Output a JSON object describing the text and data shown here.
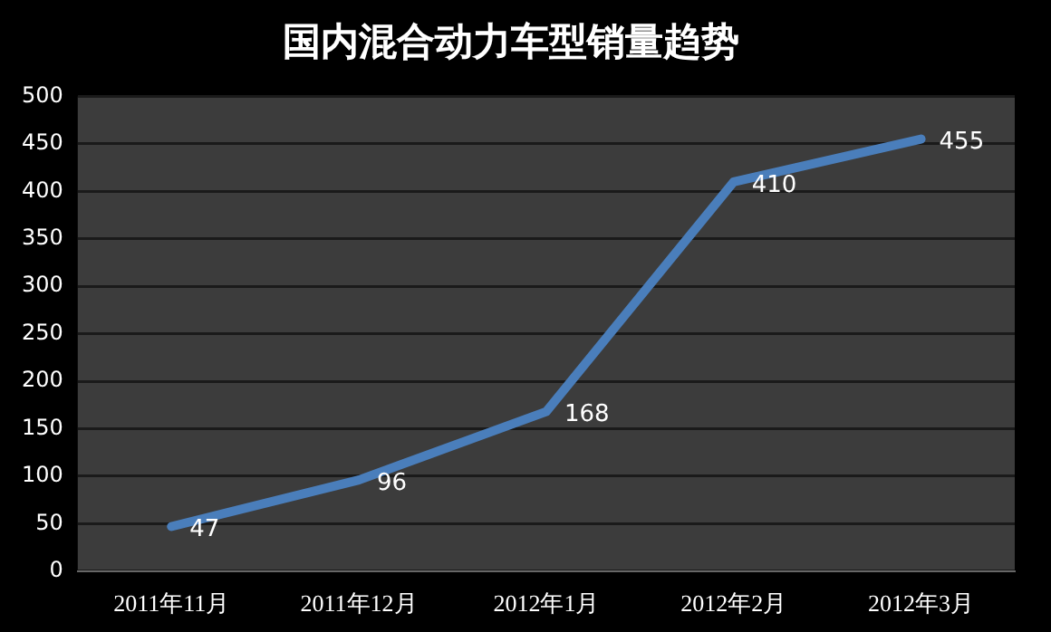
{
  "chart_data": {
    "type": "line",
    "title": "国内混合动力车型销量趋势",
    "categories": [
      "2011年11月",
      "2011年12月",
      "2012年1月",
      "2012年2月",
      "2012年3月"
    ],
    "series": [
      {
        "color": "#4a7ebb",
        "values": [
          47,
          96,
          168,
          410,
          455
        ]
      }
    ],
    "ylim": [
      0,
      500
    ],
    "yticks": [
      0,
      50,
      100,
      150,
      200,
      250,
      300,
      350,
      400,
      450,
      500
    ],
    "grid": "y",
    "legend": false,
    "marker": "none",
    "line_style": "solid",
    "data_labels": true
  }
}
